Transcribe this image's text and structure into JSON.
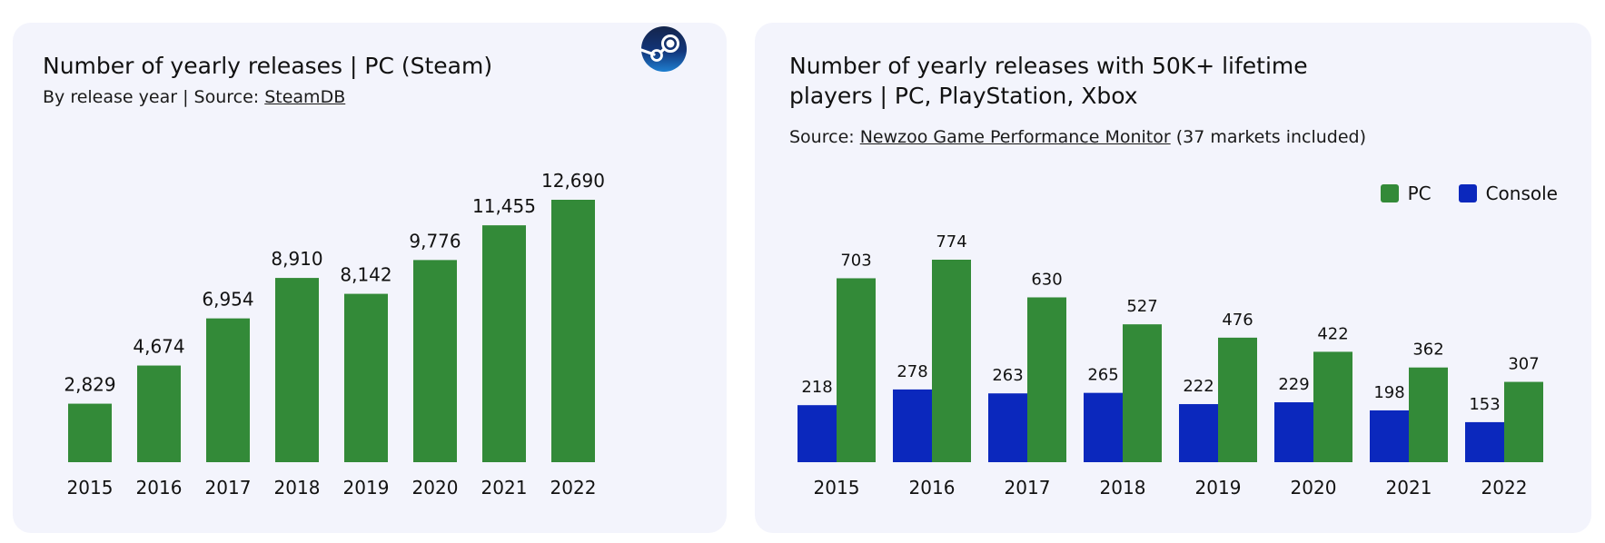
{
  "colors": {
    "pc": "#338a38",
    "console": "#0b28bd",
    "card_bg": "#f3f4fc"
  },
  "left": {
    "title": "Number of yearly releases | PC (Steam)",
    "subtitle_prefix": "By release year | Source: ",
    "subtitle_link": "SteamDB",
    "logo_icon": "steam-icon"
  },
  "right": {
    "title_line1": "Number of yearly releases with 50K+ lifetime",
    "title_line2": "players | PC, PlayStation, Xbox",
    "subtitle_prefix": "Source: ",
    "subtitle_link": "Newzoo Game Performance Monitor",
    "subtitle_suffix": " (37 markets included)",
    "legend": [
      "PC",
      "Console"
    ]
  },
  "chart_data": [
    {
      "type": "bar",
      "title": "Number of yearly releases | PC (Steam)",
      "categories": [
        "2015",
        "2016",
        "2017",
        "2018",
        "2019",
        "2020",
        "2021",
        "2022"
      ],
      "values": [
        2829,
        4674,
        6954,
        8910,
        8142,
        9776,
        11455,
        12690
      ],
      "value_labels": [
        "2,829",
        "4,674",
        "6,954",
        "8,910",
        "8,142",
        "9,776",
        "11,455",
        "12,690"
      ],
      "xlabel": "",
      "ylabel": "",
      "ylim": [
        0,
        12690
      ],
      "grid": false
    },
    {
      "type": "bar",
      "title": "Number of yearly releases with 50K+ lifetime players | PC, PlayStation, Xbox",
      "categories": [
        "2015",
        "2016",
        "2017",
        "2018",
        "2019",
        "2020",
        "2021",
        "2022"
      ],
      "series": [
        {
          "name": "Console",
          "values": [
            218,
            278,
            263,
            265,
            222,
            229,
            198,
            153
          ]
        },
        {
          "name": "PC",
          "values": [
            703,
            774,
            630,
            527,
            476,
            422,
            362,
            307
          ]
        }
      ],
      "xlabel": "",
      "ylabel": "",
      "ylim": [
        0,
        774
      ],
      "legend_position": "top-right",
      "grid": false
    }
  ]
}
